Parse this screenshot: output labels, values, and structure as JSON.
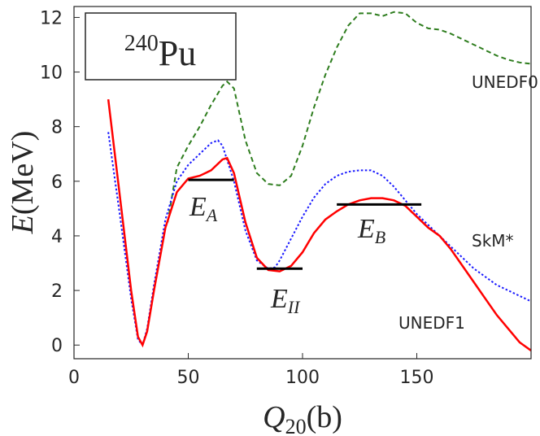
{
  "chart_data": {
    "type": "line",
    "inset_label": {
      "superscript": "240",
      "text": "Pu"
    },
    "xlabel": {
      "symbol": "Q",
      "subscript": "20",
      "unit": "(b)"
    },
    "ylabel": {
      "symbol": "E",
      "unit": "(MeV)"
    },
    "xlim": [
      0,
      200
    ],
    "xticks": [
      0,
      50,
      100,
      150
    ],
    "ylim": [
      -0.5,
      12.4
    ],
    "yticks": [
      0,
      2,
      4,
      6,
      8,
      10,
      12
    ],
    "series": [
      {
        "name": "UNEDF0",
        "color": "#2e7d1e",
        "dash": "dashed",
        "x": [
          41,
          45,
          50,
          55,
          60,
          65,
          67,
          70,
          75,
          80,
          85,
          90,
          95,
          100,
          105,
          110,
          115,
          120,
          125,
          130,
          135,
          140,
          145,
          150,
          155,
          160,
          165,
          170,
          175,
          180,
          185,
          190,
          195,
          200
        ],
        "values": [
          4.5,
          6.5,
          7.3,
          8.0,
          8.8,
          9.5,
          9.65,
          9.4,
          7.5,
          6.3,
          5.9,
          5.85,
          6.2,
          7.3,
          8.7,
          9.9,
          10.9,
          11.7,
          12.15,
          12.15,
          12.05,
          12.2,
          12.15,
          11.8,
          11.6,
          11.55,
          11.4,
          11.2,
          11.0,
          10.8,
          10.6,
          10.45,
          10.35,
          10.3
        ]
      },
      {
        "name": "SkM*",
        "color": "#1a1aff",
        "dash": "dotted",
        "x": [
          15,
          20,
          25,
          28,
          30,
          32,
          35,
          40,
          45,
          50,
          55,
          60,
          63,
          65,
          70,
          75,
          80,
          85,
          88,
          90,
          95,
          100,
          105,
          110,
          115,
          120,
          125,
          130,
          135,
          140,
          145,
          150,
          155,
          160,
          165,
          170,
          175,
          180,
          185,
          190,
          195,
          200
        ],
        "values": [
          7.8,
          4.8,
          1.7,
          0.2,
          0.0,
          0.6,
          2.2,
          4.6,
          6.0,
          6.6,
          7.0,
          7.4,
          7.5,
          7.3,
          6.0,
          4.2,
          3.1,
          2.8,
          2.85,
          3.1,
          3.9,
          4.7,
          5.4,
          5.9,
          6.2,
          6.35,
          6.4,
          6.4,
          6.2,
          5.8,
          5.3,
          4.8,
          4.4,
          4.0,
          3.6,
          3.2,
          2.8,
          2.5,
          2.2,
          2.0,
          1.8,
          1.6
        ]
      },
      {
        "name": "UNEDF1",
        "color": "#ff0000",
        "dash": "solid",
        "x": [
          15,
          20,
          25,
          28,
          30,
          32,
          35,
          40,
          45,
          50,
          55,
          60,
          65,
          67,
          70,
          75,
          80,
          85,
          90,
          95,
          100,
          105,
          110,
          115,
          120,
          125,
          130,
          135,
          140,
          145,
          150,
          155,
          160,
          165,
          170,
          175,
          180,
          185,
          190,
          195,
          200
        ],
        "values": [
          9.0,
          5.5,
          2.0,
          0.3,
          0.0,
          0.5,
          2.0,
          4.3,
          5.6,
          6.1,
          6.2,
          6.4,
          6.8,
          6.85,
          6.3,
          4.5,
          3.2,
          2.75,
          2.7,
          2.9,
          3.4,
          4.1,
          4.6,
          4.9,
          5.15,
          5.3,
          5.38,
          5.38,
          5.3,
          5.1,
          4.7,
          4.3,
          4.0,
          3.5,
          2.9,
          2.3,
          1.7,
          1.1,
          0.6,
          0.1,
          -0.2
        ]
      }
    ],
    "levels": [
      {
        "symbol": "E",
        "subscript": "A",
        "x": [
          50,
          70
        ],
        "value": 6.05
      },
      {
        "symbol": "E",
        "subscript": "II",
        "x": [
          80,
          100
        ],
        "value": 2.8
      },
      {
        "symbol": "E",
        "subscript": "B",
        "x": [
          115,
          152
        ],
        "value": 5.15
      }
    ]
  }
}
